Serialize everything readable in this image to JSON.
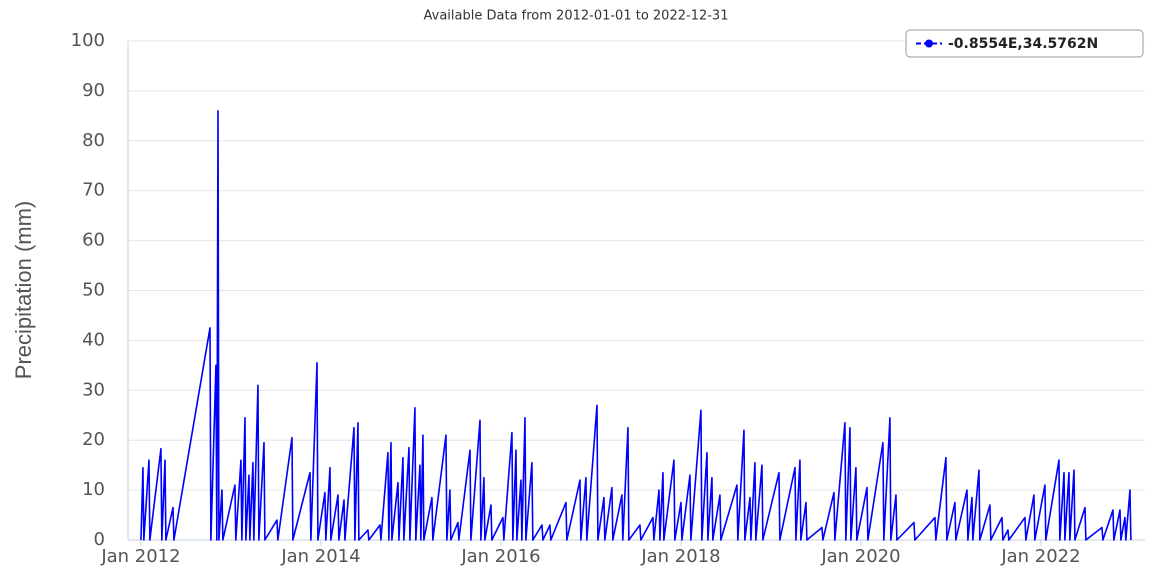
{
  "chart_data": {
    "type": "line",
    "title": "Available Data from 2012-01-01 to 2022-12-31",
    "y_label": "Precipitation (mm)",
    "xlim": [
      2011.856,
      2023.156
    ],
    "xticks": [
      {
        "value": 2012,
        "label": "Jan 2012"
      },
      {
        "value": 2014,
        "label": "Jan 2014"
      },
      {
        "value": 2016,
        "label": "Jan 2016"
      },
      {
        "value": 2018,
        "label": "Jan 2018"
      },
      {
        "value": 2020,
        "label": "Jan 2020"
      },
      {
        "value": 2022,
        "label": "Jan 2022"
      }
    ],
    "ylim": [
      0,
      100
    ],
    "yticks": [
      0,
      10,
      20,
      30,
      40,
      50,
      60,
      70,
      80,
      90,
      100
    ],
    "grid": true,
    "legend": "top-right",
    "x": [
      2012.0,
      2012.022,
      2012.032,
      2012.089,
      2012.099,
      2012.222,
      2012.232,
      2012.267,
      2012.277,
      2012.356,
      2012.366,
      2012.767,
      2012.777,
      2012.833,
      2012.843,
      2012.856,
      2012.866,
      2012.9,
      2012.91,
      2013.044,
      2013.054,
      2013.111,
      2013.121,
      2013.156,
      2013.166,
      2013.2,
      2013.21,
      2013.244,
      2013.254,
      2013.3,
      2013.31,
      2013.367,
      2013.377,
      2013.511,
      2013.521,
      2013.678,
      2013.688,
      2013.878,
      2013.888,
      2013.956,
      2013.966,
      2014.044,
      2014.054,
      2014.1,
      2014.11,
      2014.189,
      2014.199,
      2014.256,
      2014.266,
      2014.367,
      2014.377,
      2014.411,
      2014.421,
      2014.522,
      2014.532,
      2014.656,
      2014.666,
      2014.744,
      2014.754,
      2014.778,
      2014.788,
      2014.856,
      2014.866,
      2014.911,
      2014.921,
      2014.978,
      2014.988,
      2015.044,
      2015.054,
      2015.1,
      2015.11,
      2015.133,
      2015.143,
      2015.233,
      2015.243,
      2015.389,
      2015.399,
      2015.433,
      2015.443,
      2015.522,
      2015.532,
      2015.656,
      2015.666,
      2015.767,
      2015.777,
      2015.811,
      2015.821,
      2015.889,
      2015.899,
      2016.022,
      2016.032,
      2016.122,
      2016.132,
      2016.167,
      2016.177,
      2016.222,
      2016.232,
      2016.267,
      2016.277,
      2016.344,
      2016.354,
      2016.456,
      2016.466,
      2016.544,
      2016.554,
      2016.722,
      2016.732,
      2016.878,
      2016.888,
      2016.944,
      2016.954,
      2017.067,
      2017.077,
      2017.144,
      2017.154,
      2017.233,
      2017.243,
      2017.344,
      2017.354,
      2017.411,
      2017.421,
      2017.544,
      2017.554,
      2017.689,
      2017.699,
      2017.756,
      2017.766,
      2017.8,
      2017.81,
      2017.922,
      2017.932,
      2018.0,
      2018.01,
      2018.1,
      2018.11,
      2018.222,
      2018.232,
      2018.289,
      2018.299,
      2018.344,
      2018.354,
      2018.433,
      2018.443,
      2018.622,
      2018.632,
      2018.7,
      2018.71,
      2018.767,
      2018.777,
      2018.822,
      2018.832,
      2018.9,
      2018.91,
      2019.089,
      2019.099,
      2019.267,
      2019.277,
      2019.322,
      2019.332,
      2019.389,
      2019.399,
      2019.567,
      2019.577,
      2019.7,
      2019.71,
      2019.822,
      2019.832,
      2019.878,
      2019.888,
      2019.944,
      2019.954,
      2020.067,
      2020.077,
      2020.244,
      2020.254,
      2020.322,
      2020.332,
      2020.389,
      2020.399,
      2020.589,
      2020.599,
      2020.822,
      2020.832,
      2020.944,
      2020.954,
      2021.044,
      2021.054,
      2021.178,
      2021.188,
      2021.233,
      2021.243,
      2021.311,
      2021.321,
      2021.433,
      2021.443,
      2021.567,
      2021.577,
      2021.633,
      2021.643,
      2021.822,
      2021.832,
      2021.922,
      2021.932,
      2022.044,
      2022.054,
      2022.2,
      2022.21,
      2022.256,
      2022.266,
      2022.311,
      2022.321,
      2022.367,
      2022.377,
      2022.489,
      2022.499,
      2022.678,
      2022.688,
      2022.8,
      2022.81,
      2022.878,
      2022.888,
      2022.933,
      2022.943,
      2022.989,
      2022.999
    ],
    "series": [
      {
        "name": "-0.8554E,34.5762N",
        "color": "#0000ff",
        "values": [
          0,
          14.5,
          0,
          16,
          0,
          18.3,
          0,
          16,
          0,
          6.5,
          0,
          42.5,
          0,
          35,
          0,
          86,
          0,
          10,
          0,
          11,
          0,
          16,
          0,
          24.5,
          0,
          13,
          0,
          15.5,
          0,
          31,
          0,
          19.5,
          0,
          4,
          0,
          20.5,
          0,
          13.5,
          0,
          35.5,
          0,
          9.5,
          0,
          14.5,
          0,
          9,
          0,
          8,
          0,
          22.5,
          0,
          23.5,
          0,
          2,
          0,
          3,
          0,
          17.5,
          0,
          19.5,
          0,
          11.5,
          0,
          16.5,
          0,
          18.5,
          0,
          26.5,
          0,
          15,
          0,
          21,
          0,
          8.5,
          0,
          21,
          0,
          10,
          0,
          3.5,
          0,
          18,
          0,
          24,
          0,
          12.5,
          0,
          7,
          0,
          4.5,
          0,
          21.5,
          0,
          18,
          0,
          12,
          0,
          24.5,
          0,
          15.5,
          0,
          3,
          0,
          3,
          0,
          7.5,
          0,
          12,
          0,
          12.5,
          0,
          27,
          0,
          8.5,
          0,
          10.5,
          0,
          9,
          0,
          22.5,
          0,
          3,
          0,
          4.5,
          0,
          10,
          0,
          13.5,
          0,
          16,
          0,
          7.5,
          0,
          13,
          0,
          26,
          0,
          17.5,
          0,
          12.5,
          0,
          9,
          0,
          11,
          0,
          22,
          0,
          8.5,
          0,
          15.5,
          0,
          15,
          0,
          13.5,
          0,
          14.5,
          0,
          16,
          0,
          7.5,
          0,
          2.5,
          0,
          9.5,
          0,
          23.5,
          0,
          22.5,
          0,
          14.5,
          0,
          10.5,
          0,
          19.5,
          0,
          24.5,
          0,
          9,
          0,
          3.5,
          0,
          4.5,
          0,
          16.5,
          0,
          7.5,
          0,
          10,
          0,
          8.5,
          0,
          14,
          0,
          7,
          0,
          4.5,
          0,
          2,
          0,
          4.5,
          0,
          9,
          0,
          11,
          0,
          16,
          0,
          13.5,
          0,
          13.5,
          0,
          14,
          0,
          6.5,
          0,
          2.5,
          0,
          6,
          0,
          6,
          0,
          4.5,
          0,
          10,
          0
        ]
      }
    ]
  }
}
